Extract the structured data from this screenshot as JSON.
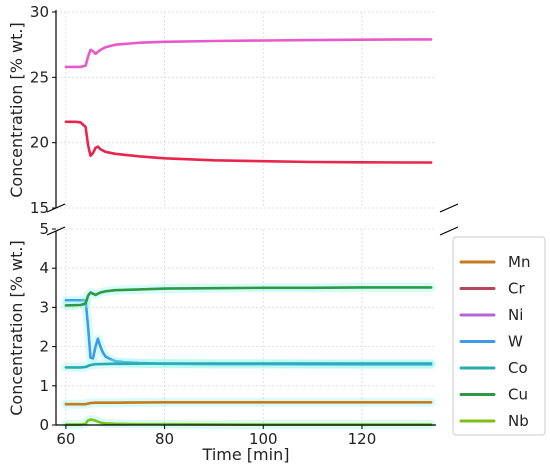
{
  "chart_data": {
    "type": "line",
    "xlabel": "Time [min]",
    "ylabel": "Concentration [% wt.]",
    "xlim": [
      58,
      135
    ],
    "x_ticks": [
      "60",
      "80",
      "100",
      "120"
    ],
    "broken_y_axis": true,
    "upper_panel": {
      "ylim": [
        15,
        30
      ],
      "y_ticks": [
        "15",
        "20",
        "25",
        "30"
      ],
      "grid": true,
      "series": [
        {
          "name": "Ni",
          "color": "#e85ac9",
          "x": [
            60,
            62,
            63,
            64,
            64.5,
            65,
            65.5,
            66,
            67,
            68,
            70,
            75,
            80,
            90,
            100,
            110,
            120,
            130,
            134
          ],
          "y": [
            25.8,
            25.8,
            25.8,
            25.9,
            26.6,
            27.1,
            27.0,
            26.8,
            27.1,
            27.3,
            27.5,
            27.65,
            27.72,
            27.78,
            27.82,
            27.85,
            27.88,
            27.9,
            27.9
          ]
        },
        {
          "name": "Cr",
          "color": "#e8264d",
          "x": [
            60,
            62,
            63,
            64,
            64.5,
            65,
            65.5,
            66,
            66.5,
            67,
            68,
            70,
            75,
            80,
            90,
            100,
            110,
            120,
            130,
            134
          ],
          "y": [
            21.6,
            21.6,
            21.55,
            21.2,
            19.8,
            19.0,
            19.2,
            19.6,
            19.7,
            19.5,
            19.3,
            19.15,
            18.95,
            18.8,
            18.65,
            18.58,
            18.52,
            18.5,
            18.48,
            18.48
          ]
        }
      ]
    },
    "lower_panel": {
      "ylim": [
        0,
        5
      ],
      "y_ticks": [
        "0",
        "1",
        "2",
        "3",
        "4",
        "5"
      ],
      "grid": true,
      "series": [
        {
          "name": "Mn",
          "color": "#c77a1e",
          "x": [
            60,
            63,
            64,
            65,
            66,
            70,
            80,
            100,
            120,
            134
          ],
          "y": [
            0.53,
            0.53,
            0.53,
            0.56,
            0.57,
            0.57,
            0.58,
            0.58,
            0.58,
            0.58
          ]
        },
        {
          "name": "Cr",
          "color": "#b5485a",
          "x": [],
          "y": []
        },
        {
          "name": "Ni",
          "color": "#b367d6",
          "x": [],
          "y": []
        },
        {
          "name": "W",
          "color": "#3d9be9",
          "x": [
            60,
            63,
            64,
            64.5,
            65,
            65.5,
            66,
            66.5,
            67,
            67.5,
            68,
            69,
            70,
            72,
            75,
            80,
            90,
            100,
            120,
            134
          ],
          "y": [
            3.18,
            3.18,
            3.18,
            2.5,
            1.72,
            1.7,
            2.0,
            2.2,
            2.0,
            1.85,
            1.75,
            1.68,
            1.63,
            1.6,
            1.58,
            1.56,
            1.55,
            1.55,
            1.54,
            1.54
          ]
        },
        {
          "name": "Co",
          "color": "#2aa9b0",
          "x": [
            60,
            63,
            64,
            65,
            66,
            70,
            80,
            100,
            120,
            134
          ],
          "y": [
            1.47,
            1.47,
            1.48,
            1.53,
            1.55,
            1.56,
            1.57,
            1.57,
            1.57,
            1.57
          ]
        },
        {
          "name": "Cu",
          "color": "#2e9a46",
          "x": [
            60,
            63,
            64,
            64.5,
            65,
            65.5,
            66,
            67,
            68,
            70,
            75,
            80,
            90,
            100,
            110,
            120,
            134
          ],
          "y": [
            3.05,
            3.06,
            3.1,
            3.3,
            3.38,
            3.35,
            3.32,
            3.38,
            3.41,
            3.44,
            3.46,
            3.48,
            3.49,
            3.5,
            3.5,
            3.51,
            3.51
          ]
        },
        {
          "name": "Nb",
          "color": "#7dc212",
          "x": [
            60,
            63,
            64,
            64.5,
            65,
            65.5,
            66,
            67,
            68,
            70,
            75,
            80,
            100,
            134
          ],
          "y": [
            0.01,
            0.01,
            0.03,
            0.12,
            0.14,
            0.13,
            0.11,
            0.06,
            0.04,
            0.03,
            0.02,
            0.02,
            0.01,
            0.01
          ]
        }
      ]
    },
    "legend": {
      "placement": "right-bottom",
      "entries": [
        {
          "name": "Mn",
          "color": "#c77a1e"
        },
        {
          "name": "Cr",
          "color": "#b5485a"
        },
        {
          "name": "Ni",
          "color": "#b367d6"
        },
        {
          "name": "W",
          "color": "#3d9be9"
        },
        {
          "name": "Co",
          "color": "#2aa9b0"
        },
        {
          "name": "Cu",
          "color": "#2e9a46"
        },
        {
          "name": "Nb",
          "color": "#7dc212"
        }
      ]
    }
  }
}
